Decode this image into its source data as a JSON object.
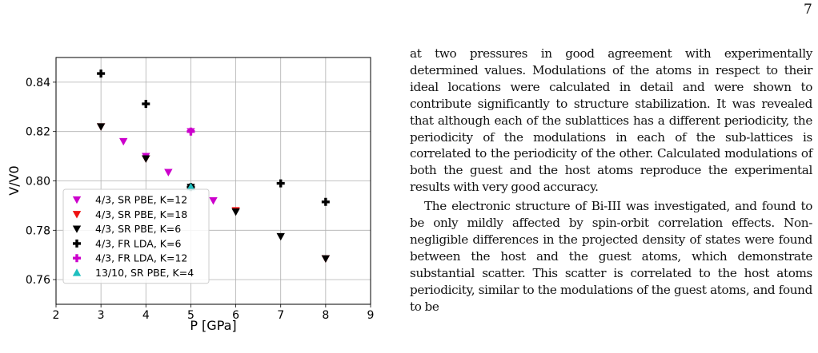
{
  "page": {
    "number": "7"
  },
  "figure": {
    "chart_data": {
      "type": "scatter",
      "xlabel": "P [GPa]",
      "ylabel": "V/V0",
      "xlim": [
        2,
        9
      ],
      "ylim": [
        0.75,
        0.85
      ],
      "xticks": [
        2,
        3,
        4,
        5,
        6,
        7,
        8,
        9
      ],
      "yticks": [
        0.76,
        0.78,
        0.8,
        0.82,
        0.84
      ],
      "ytick_labels": [
        "0.76",
        "0.78",
        "0.80",
        "0.82",
        "0.84"
      ],
      "grid": true,
      "legend_position": "lower-left",
      "series": [
        {
          "name": "4/3, SR PBE, K=12",
          "marker": "triangle-down",
          "color": "#cc00cc",
          "points": [
            [
              3.5,
              0.816
            ],
            [
              4.0,
              0.81
            ],
            [
              4.5,
              0.8035
            ],
            [
              5.0,
              0.82
            ],
            [
              5.5,
              0.792
            ]
          ]
        },
        {
          "name": "4/3, SR PBE, K=18",
          "marker": "triangle-down",
          "color": "#ee1111",
          "points": [
            [
              3.0,
              0.822
            ],
            [
              4.0,
              0.809
            ],
            [
              6.0,
              0.788
            ],
            [
              8.0,
              0.7685
            ]
          ]
        },
        {
          "name": "4/3, SR PBE, K=6",
          "marker": "triangle-down",
          "color": "#000000",
          "points": [
            [
              3.0,
              0.822
            ],
            [
              4.0,
              0.809
            ],
            [
              5.0,
              0.7975
            ],
            [
              6.0,
              0.7875
            ],
            [
              7.0,
              0.7775
            ],
            [
              8.0,
              0.7685
            ]
          ]
        },
        {
          "name": "4/3, FR LDA, K=6",
          "marker": "plus",
          "color": "#000000",
          "points": [
            [
              3.0,
              0.8435
            ],
            [
              4.0,
              0.8312
            ],
            [
              5.0,
              0.7975
            ],
            [
              7.0,
              0.799
            ],
            [
              8.0,
              0.7915
            ]
          ]
        },
        {
          "name": "4/3, FR LDA, K=12",
          "marker": "plus",
          "color": "#cc00cc",
          "points": [
            [
              5.0,
              0.82
            ]
          ]
        },
        {
          "name": "13/10, SR PBE, K=4",
          "marker": "triangle-up",
          "color": "#1fbfbf",
          "points": [
            [
              5.0,
              0.7975
            ]
          ]
        }
      ]
    }
  },
  "text": {
    "paragraph1": "at two pressures in good agreement with experimentally determined values. Modulations of the atoms in respect to their ideal locations were calculated in detail and were shown to contribute significantly to structure stabilization. It was revealed that although each of the sublattices has a different periodicity, the periodicity of the modulations in each of the sub-lattices is correlated to the periodicity of the other. Calculated modulations of both the guest and the host atoms reproduce the experimental results with very good accuracy.",
    "paragraph2": "The electronic structure of Bi-III was investigated, and found to be only mildly affected by spin-orbit correlation effects. Non-negligible differences in the projected density of states were found between the host and the guest atoms, which demonstrate substantial scatter. This scatter is correlated to the host atoms periodicity, similar to the modulations of the guest atoms, and found to be"
  }
}
